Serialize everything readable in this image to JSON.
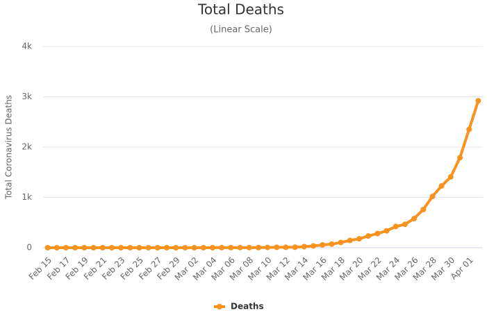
{
  "chart_data": {
    "type": "line",
    "title": "Total Deaths",
    "subtitle": "(Linear Scale)",
    "y_axis_label": "Total Coronavirus Deaths",
    "categories": [
      "Feb 15",
      null,
      "Feb 17",
      null,
      "Feb 19",
      null,
      "Feb 21",
      null,
      "Feb 23",
      null,
      "Feb 25",
      null,
      "Feb 27",
      null,
      "Feb 29",
      null,
      "Mar 02",
      null,
      "Mar 04",
      null,
      "Mar 06",
      null,
      "Mar 08",
      null,
      "Mar 10",
      null,
      "Mar 12",
      null,
      "Mar 14",
      null,
      "Mar 16",
      null,
      "Mar 18",
      null,
      "Mar 20",
      null,
      "Mar 22",
      null,
      "Mar 24",
      null,
      "Mar 26",
      null,
      "Mar 28",
      null,
      "Mar 30",
      null,
      "Apr 01",
      null
    ],
    "series": [
      {
        "name": "Deaths",
        "color": "#f7931e",
        "values": [
          0,
          0,
          0,
          0,
          0,
          0,
          0,
          0,
          0,
          0,
          0,
          0,
          0,
          0,
          0,
          0,
          0,
          0,
          0,
          1,
          1,
          2,
          2,
          3,
          6,
          8,
          8,
          10,
          21,
          35,
          55,
          71,
          104,
          144,
          177,
          233,
          281,
          335,
          422,
          465,
          578,
          759,
          1019,
          1228,
          1408,
          1789,
          2352,
          2921
        ]
      }
    ],
    "ylim": [
      0,
      4000
    ],
    "yticks": [
      0,
      {
        "value": 1000,
        "label": "1k"
      },
      {
        "value": 2000,
        "label": "2k"
      },
      {
        "value": 3000,
        "label": "3k"
      },
      {
        "value": 4000,
        "label": "4k"
      }
    ],
    "grid": true,
    "legend": "bottom"
  }
}
